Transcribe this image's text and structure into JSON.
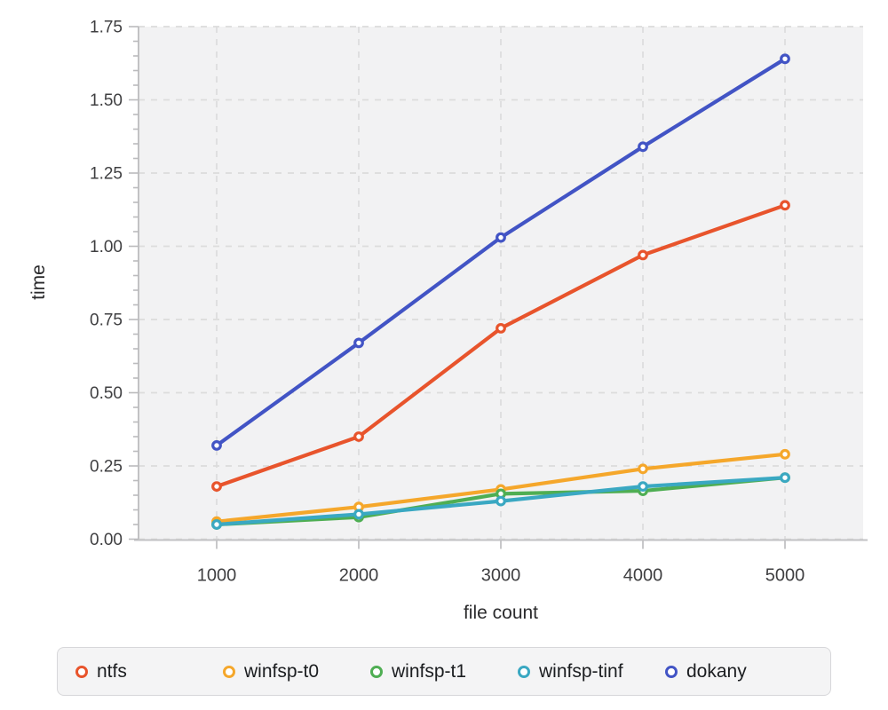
{
  "chart_data": {
    "type": "line",
    "x": [
      1000,
      2000,
      3000,
      4000,
      5000
    ],
    "x_ticks": [
      "1000",
      "2000",
      "3000",
      "4000",
      "5000"
    ],
    "y_ticks": [
      "0.00",
      "0.25",
      "0.50",
      "0.75",
      "1.00",
      "1.25",
      "1.50",
      "1.75"
    ],
    "ylim": [
      0,
      1.75
    ],
    "y_major_step": 0.25,
    "y_minor_step": 0.05,
    "xlabel": "file count",
    "ylabel": "time",
    "grid": "dashed",
    "legend_position": "bottom",
    "marker": "open-circle",
    "series": [
      {
        "name": "ntfs",
        "color": "#e8542c",
        "values": [
          0.18,
          0.35,
          0.72,
          0.97,
          1.14
        ]
      },
      {
        "name": "winfsp-t0",
        "color": "#f5a72b",
        "values": [
          0.06,
          0.11,
          0.17,
          0.24,
          0.29
        ]
      },
      {
        "name": "winfsp-t1",
        "color": "#4fae53",
        "values": [
          0.05,
          0.075,
          0.155,
          0.165,
          0.21
        ]
      },
      {
        "name": "winfsp-tinf",
        "color": "#3aa8c2",
        "values": [
          0.05,
          0.085,
          0.13,
          0.18,
          0.21
        ]
      },
      {
        "name": "dokany",
        "color": "#4254c5",
        "values": [
          0.32,
          0.67,
          1.03,
          1.34,
          1.64
        ]
      }
    ]
  },
  "styles": {
    "plot_bg": "#f2f2f3",
    "grid_color": "#dcdcdc",
    "axis_color": "#c2c2c4",
    "tick_color": "#bbbbbd"
  }
}
